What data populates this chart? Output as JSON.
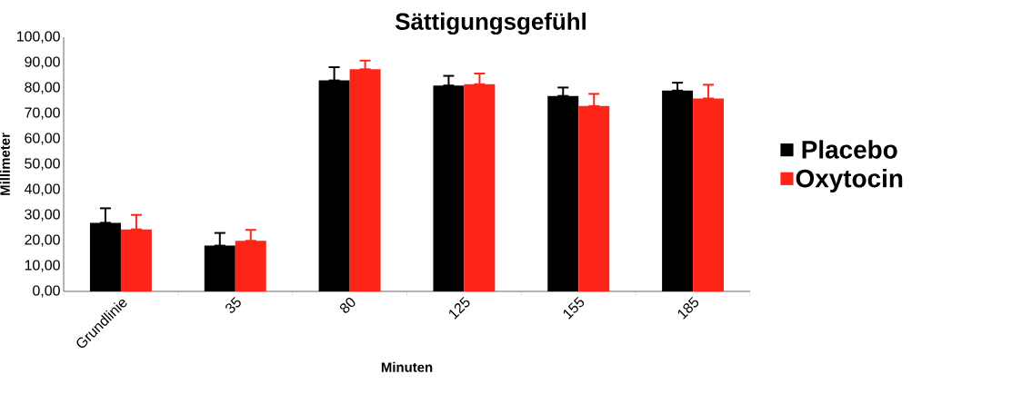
{
  "chart_data": {
    "type": "bar",
    "title": "Sättigungsgefühl",
    "xlabel": "Minuten",
    "ylabel": "Millimeter",
    "categories": [
      "Grundlinie",
      "35",
      "80",
      "125",
      "155",
      "185"
    ],
    "series": [
      {
        "name": "Placebo",
        "color": "#000000",
        "values": [
          27.0,
          18.0,
          83.0,
          81.0,
          76.9,
          79.0
        ],
        "errors": [
          [
            27.0,
            32.7
          ],
          [
            18.0,
            23.0
          ],
          [
            83.0,
            88.2
          ],
          [
            81.0,
            84.8
          ],
          [
            76.9,
            80.2
          ],
          [
            79.0,
            82.1
          ]
        ]
      },
      {
        "name": "Oxytocin",
        "color": "#ff2418",
        "values": [
          24.4,
          19.9,
          87.4,
          81.5,
          72.9,
          75.9
        ],
        "errors": [
          [
            24.4,
            30.1
          ],
          [
            19.9,
            24.2
          ],
          [
            87.4,
            90.8
          ],
          [
            81.5,
            85.7
          ],
          [
            72.9,
            77.7
          ],
          [
            75.9,
            81.3
          ]
        ]
      }
    ],
    "ylim": [
      0,
      100
    ],
    "yticks": [
      {
        "value": 0,
        "label": "0,00"
      },
      {
        "value": 10,
        "label": "10,00"
      },
      {
        "value": 20,
        "label": "20,00"
      },
      {
        "value": 30,
        "label": "30,00"
      },
      {
        "value": 40,
        "label": "40,00"
      },
      {
        "value": 50,
        "label": "50,00"
      },
      {
        "value": 60,
        "label": "60,00"
      },
      {
        "value": 70,
        "label": "70,00"
      },
      {
        "value": 80,
        "label": "80,00"
      },
      {
        "value": 90,
        "label": "90,00"
      },
      {
        "value": 100,
        "label": "100,00"
      }
    ],
    "grid": false,
    "legend": "right"
  }
}
